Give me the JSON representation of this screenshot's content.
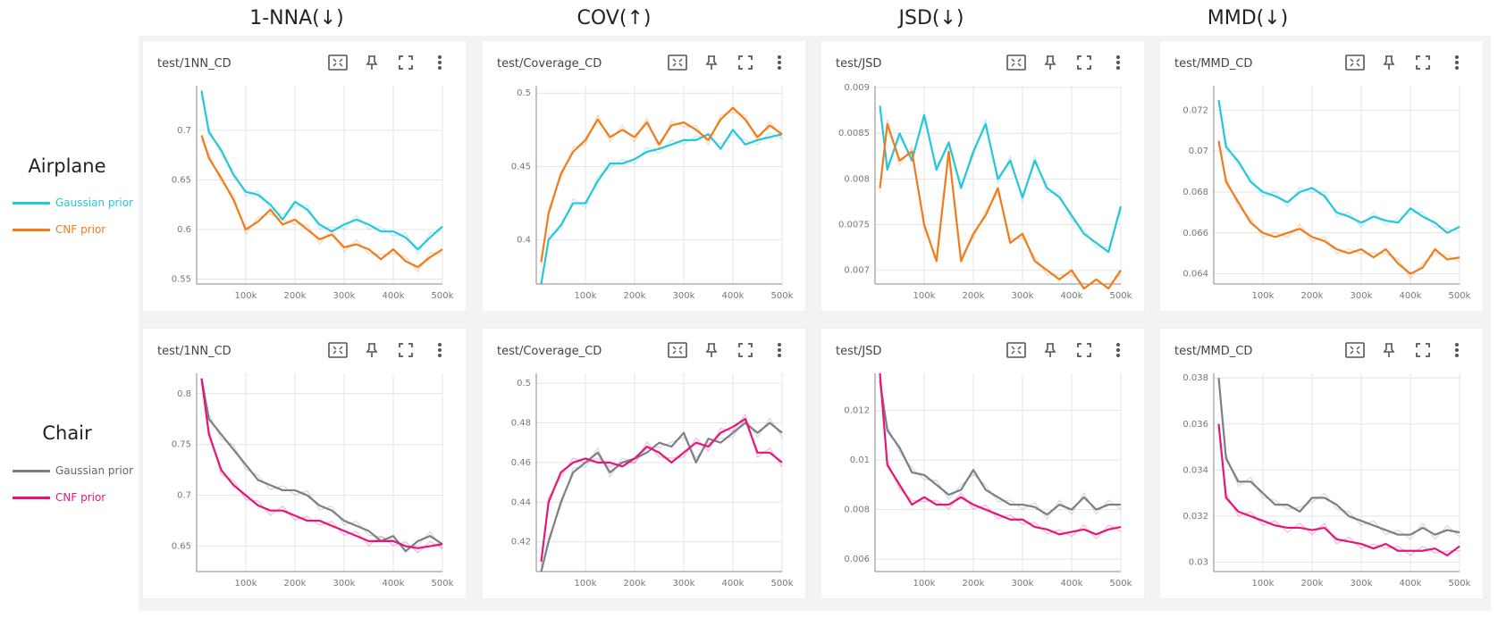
{
  "columns": [
    {
      "title": "1-NNA(↓)"
    },
    {
      "title": "COV(↑)"
    },
    {
      "title": "JSD(↓)"
    },
    {
      "title": "MMD(↓)"
    }
  ],
  "rows": [
    {
      "label": "Airplane",
      "legend": [
        {
          "label": "Gaussian prior",
          "color": "#26c6da"
        },
        {
          "label": "CNF prior",
          "color": "#ef7c1a"
        }
      ]
    },
    {
      "label": "Chair",
      "legend": [
        {
          "label": "Gaussian prior",
          "color": "#7b7f8a"
        },
        {
          "label": "CNF prior",
          "color": "#e6157a"
        }
      ]
    }
  ],
  "panels": [
    {
      "tag": "test/1NN_CD"
    },
    {
      "tag": "test/Coverage_CD"
    },
    {
      "tag": "test/JSD"
    },
    {
      "tag": "test/MMD_CD"
    },
    {
      "tag": "test/1NN_CD"
    },
    {
      "tag": "test/Coverage_CD"
    },
    {
      "tag": "test/JSD"
    },
    {
      "tag": "test/MMD_CD"
    }
  ],
  "icons": [
    "fit-domain-icon",
    "pin-icon",
    "fullscreen-icon",
    "more-vert-icon"
  ],
  "chart_data": [
    {
      "type": "line",
      "title": "test/1NN_CD",
      "xlim": [
        0,
        500000
      ],
      "ylim": [
        0.545,
        0.745
      ],
      "xticks": [
        "100k",
        "200k",
        "300k",
        "400k",
        "500k"
      ],
      "yticks": [
        0.55,
        0.6,
        0.65,
        0.7
      ],
      "ytick_labels": [
        "0.55",
        "0.6",
        "0.65",
        "0.7"
      ],
      "x": [
        10000,
        25000,
        50000,
        75000,
        100000,
        125000,
        150000,
        175000,
        200000,
        225000,
        250000,
        275000,
        300000,
        325000,
        350000,
        375000,
        400000,
        425000,
        450000,
        475000,
        500000
      ],
      "series": [
        {
          "name": "Gaussian prior",
          "color": "#26c6da",
          "values": [
            0.74,
            0.698,
            0.68,
            0.655,
            0.638,
            0.635,
            0.625,
            0.61,
            0.628,
            0.62,
            0.605,
            0.598,
            0.605,
            0.61,
            0.605,
            0.598,
            0.598,
            0.592,
            0.58,
            0.592,
            0.603
          ]
        },
        {
          "name": "CNF prior",
          "color": "#ef7c1a",
          "values": [
            0.695,
            0.672,
            0.652,
            0.63,
            0.6,
            0.608,
            0.62,
            0.605,
            0.61,
            0.6,
            0.59,
            0.595,
            0.582,
            0.585,
            0.58,
            0.57,
            0.58,
            0.568,
            0.562,
            0.572,
            0.58
          ]
        }
      ]
    },
    {
      "type": "line",
      "title": "test/Coverage_CD",
      "xlim": [
        0,
        500000
      ],
      "ylim": [
        0.37,
        0.505
      ],
      "xticks": [
        "100k",
        "200k",
        "300k",
        "400k",
        "500k"
      ],
      "yticks": [
        0.4,
        0.45,
        0.5
      ],
      "ytick_labels": [
        "0.4",
        "0.45",
        "0.5"
      ],
      "x": [
        10000,
        25000,
        50000,
        75000,
        100000,
        125000,
        150000,
        175000,
        200000,
        225000,
        250000,
        275000,
        300000,
        325000,
        350000,
        375000,
        400000,
        425000,
        450000,
        475000,
        500000
      ],
      "series": [
        {
          "name": "Gaussian prior",
          "color": "#26c6da",
          "values": [
            0.37,
            0.4,
            0.41,
            0.425,
            0.425,
            0.44,
            0.452,
            0.452,
            0.455,
            0.46,
            0.462,
            0.465,
            0.468,
            0.468,
            0.472,
            0.462,
            0.475,
            0.465,
            0.468,
            0.47,
            0.472
          ]
        },
        {
          "name": "CNF prior",
          "color": "#ef7c1a",
          "values": [
            0.385,
            0.418,
            0.445,
            0.46,
            0.468,
            0.482,
            0.47,
            0.475,
            0.47,
            0.48,
            0.465,
            0.478,
            0.48,
            0.475,
            0.468,
            0.482,
            0.49,
            0.482,
            0.47,
            0.478,
            0.472
          ]
        }
      ]
    },
    {
      "type": "line",
      "title": "test/JSD",
      "xlim": [
        0,
        500000
      ],
      "ylim": [
        0.00685,
        0.00902
      ],
      "xticks": [
        "100k",
        "200k",
        "300k",
        "400k",
        "500k"
      ],
      "yticks": [
        0.007,
        0.0075,
        0.008,
        0.0085,
        0.009
      ],
      "ytick_labels": [
        "0.007",
        "0.0075",
        "0.008",
        "0.0085",
        "0.009"
      ],
      "x": [
        10000,
        25000,
        50000,
        75000,
        100000,
        125000,
        150000,
        175000,
        200000,
        225000,
        250000,
        275000,
        300000,
        325000,
        350000,
        375000,
        400000,
        425000,
        450000,
        475000,
        500000
      ],
      "series": [
        {
          "name": "Gaussian prior",
          "color": "#26c6da",
          "values": [
            0.0088,
            0.0081,
            0.0085,
            0.0082,
            0.0087,
            0.0081,
            0.0084,
            0.0079,
            0.0083,
            0.0086,
            0.008,
            0.0082,
            0.0078,
            0.0082,
            0.0079,
            0.0078,
            0.0076,
            0.0074,
            0.0073,
            0.0072,
            0.0077
          ]
        },
        {
          "name": "CNF prior",
          "color": "#ef7c1a",
          "values": [
            0.0079,
            0.0086,
            0.0082,
            0.0083,
            0.0075,
            0.0071,
            0.0083,
            0.0071,
            0.0074,
            0.0076,
            0.0079,
            0.0073,
            0.0074,
            0.0071,
            0.007,
            0.0069,
            0.007,
            0.0068,
            0.0069,
            0.0068,
            0.007
          ]
        }
      ]
    },
    {
      "type": "line",
      "title": "test/MMD_CD",
      "xlim": [
        0,
        500000
      ],
      "ylim": [
        0.0635,
        0.0732
      ],
      "xticks": [
        "100k",
        "200k",
        "300k",
        "400k",
        "500k"
      ],
      "yticks": [
        0.064,
        0.066,
        0.068,
        0.07,
        0.072
      ],
      "ytick_labels": [
        "0.064",
        "0.066",
        "0.068",
        "0.07",
        "0.072"
      ],
      "x": [
        10000,
        25000,
        50000,
        75000,
        100000,
        125000,
        150000,
        175000,
        200000,
        225000,
        250000,
        275000,
        300000,
        325000,
        350000,
        375000,
        400000,
        425000,
        450000,
        475000,
        500000
      ],
      "series": [
        {
          "name": "Gaussian prior",
          "color": "#26c6da",
          "values": [
            0.0725,
            0.0702,
            0.0695,
            0.0685,
            0.068,
            0.0678,
            0.0675,
            0.068,
            0.0682,
            0.0678,
            0.067,
            0.0668,
            0.0665,
            0.0668,
            0.0666,
            0.0665,
            0.0672,
            0.0668,
            0.0665,
            0.066,
            0.0663
          ]
        },
        {
          "name": "CNF prior",
          "color": "#ef7c1a",
          "values": [
            0.0705,
            0.0685,
            0.0675,
            0.0665,
            0.066,
            0.0658,
            0.066,
            0.0662,
            0.0658,
            0.0656,
            0.0652,
            0.065,
            0.0652,
            0.0648,
            0.0652,
            0.0645,
            0.064,
            0.0643,
            0.0652,
            0.0647,
            0.0648
          ]
        }
      ]
    },
    {
      "type": "line",
      "title": "test/1NN_CD",
      "xlim": [
        0,
        500000
      ],
      "ylim": [
        0.625,
        0.82
      ],
      "xticks": [
        "100k",
        "200k",
        "300k",
        "400k",
        "500k"
      ],
      "yticks": [
        0.65,
        0.7,
        0.75,
        0.8
      ],
      "ytick_labels": [
        "0.65",
        "0.7",
        "0.75",
        "0.8"
      ],
      "x": [
        10000,
        25000,
        50000,
        75000,
        100000,
        125000,
        150000,
        175000,
        200000,
        225000,
        250000,
        275000,
        300000,
        325000,
        350000,
        375000,
        400000,
        425000,
        450000,
        475000,
        500000
      ],
      "series": [
        {
          "name": "Gaussian prior",
          "color": "#7b7f8a",
          "values": [
            0.815,
            0.775,
            0.76,
            0.745,
            0.73,
            0.715,
            0.71,
            0.705,
            0.705,
            0.7,
            0.69,
            0.685,
            0.675,
            0.67,
            0.665,
            0.655,
            0.66,
            0.645,
            0.655,
            0.66,
            0.652
          ]
        },
        {
          "name": "CNF prior",
          "color": "#e6157a",
          "values": [
            0.815,
            0.76,
            0.725,
            0.71,
            0.7,
            0.69,
            0.685,
            0.685,
            0.68,
            0.675,
            0.675,
            0.67,
            0.665,
            0.66,
            0.655,
            0.655,
            0.655,
            0.65,
            0.648,
            0.65,
            0.652
          ]
        }
      ]
    },
    {
      "type": "line",
      "title": "test/Coverage_CD",
      "xlim": [
        0,
        500000
      ],
      "ylim": [
        0.405,
        0.505
      ],
      "xticks": [
        "100k",
        "200k",
        "300k",
        "400k",
        "500k"
      ],
      "yticks": [
        0.42,
        0.44,
        0.46,
        0.48,
        0.5
      ],
      "ytick_labels": [
        "0.42",
        "0.44",
        "0.46",
        "0.48",
        "0.5"
      ],
      "x": [
        10000,
        25000,
        50000,
        75000,
        100000,
        125000,
        150000,
        175000,
        200000,
        225000,
        250000,
        275000,
        300000,
        325000,
        350000,
        375000,
        400000,
        425000,
        450000,
        475000,
        500000
      ],
      "series": [
        {
          "name": "Gaussian prior",
          "color": "#7b7f8a",
          "values": [
            0.405,
            0.42,
            0.44,
            0.455,
            0.46,
            0.465,
            0.455,
            0.46,
            0.462,
            0.465,
            0.47,
            0.468,
            0.475,
            0.46,
            0.472,
            0.47,
            0.475,
            0.48,
            0.475,
            0.48,
            0.475
          ]
        },
        {
          "name": "CNF prior",
          "color": "#e6157a",
          "values": [
            0.41,
            0.44,
            0.455,
            0.46,
            0.462,
            0.46,
            0.46,
            0.458,
            0.462,
            0.468,
            0.465,
            0.46,
            0.465,
            0.47,
            0.468,
            0.475,
            0.478,
            0.482,
            0.465,
            0.465,
            0.46
          ]
        }
      ]
    },
    {
      "type": "line",
      "title": "test/JSD",
      "xlim": [
        0,
        500000
      ],
      "ylim": [
        0.0055,
        0.0135
      ],
      "xticks": [
        "100k",
        "200k",
        "300k",
        "400k",
        "500k"
      ],
      "yticks": [
        0.006,
        0.008,
        0.01,
        0.012
      ],
      "ytick_labels": [
        "0.006",
        "0.008",
        "0.01",
        "0.012"
      ],
      "x": [
        10000,
        25000,
        50000,
        75000,
        100000,
        125000,
        150000,
        175000,
        200000,
        225000,
        250000,
        275000,
        300000,
        325000,
        350000,
        375000,
        400000,
        425000,
        450000,
        475000,
        500000
      ],
      "series": [
        {
          "name": "Gaussian prior",
          "color": "#7b7f8a",
          "values": [
            0.0132,
            0.0112,
            0.0105,
            0.0095,
            0.0094,
            0.009,
            0.0086,
            0.0088,
            0.0096,
            0.0088,
            0.0085,
            0.0082,
            0.0082,
            0.0081,
            0.0078,
            0.0082,
            0.008,
            0.0085,
            0.008,
            0.0082,
            0.0082
          ]
        },
        {
          "name": "CNF prior",
          "color": "#e6157a",
          "values": [
            0.0135,
            0.0098,
            0.009,
            0.0082,
            0.0085,
            0.0082,
            0.0082,
            0.0085,
            0.0082,
            0.008,
            0.0078,
            0.0076,
            0.0076,
            0.0073,
            0.0072,
            0.007,
            0.0071,
            0.0072,
            0.007,
            0.0072,
            0.0073
          ]
        }
      ]
    },
    {
      "type": "line",
      "title": "test/MMD_CD",
      "xlim": [
        0,
        500000
      ],
      "ylim": [
        0.0296,
        0.0382
      ],
      "xticks": [
        "100k",
        "200k",
        "300k",
        "400k",
        "500k"
      ],
      "yticks": [
        0.03,
        0.032,
        0.034,
        0.036,
        0.038
      ],
      "ytick_labels": [
        "0.03",
        "0.032",
        "0.034",
        "0.036",
        "0.038"
      ],
      "x": [
        10000,
        25000,
        50000,
        75000,
        100000,
        125000,
        150000,
        175000,
        200000,
        225000,
        250000,
        275000,
        300000,
        325000,
        350000,
        375000,
        400000,
        425000,
        450000,
        475000,
        500000
      ],
      "series": [
        {
          "name": "Gaussian prior",
          "color": "#7b7f8a",
          "values": [
            0.038,
            0.0345,
            0.0335,
            0.0335,
            0.033,
            0.0325,
            0.0325,
            0.0322,
            0.0328,
            0.0328,
            0.0325,
            0.032,
            0.0318,
            0.0316,
            0.0314,
            0.0312,
            0.0312,
            0.0315,
            0.0312,
            0.0314,
            0.0313
          ]
        },
        {
          "name": "CNF prior",
          "color": "#e6157a",
          "values": [
            0.036,
            0.0328,
            0.0322,
            0.032,
            0.0318,
            0.0316,
            0.0315,
            0.0315,
            0.0314,
            0.0315,
            0.031,
            0.0309,
            0.0308,
            0.0306,
            0.0308,
            0.0305,
            0.0305,
            0.0305,
            0.0306,
            0.0303,
            0.0307
          ]
        }
      ]
    }
  ]
}
